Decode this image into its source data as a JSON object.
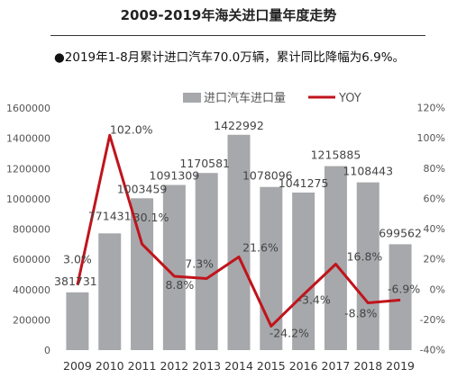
{
  "title": "2009-2019年海关进口量年度走势",
  "subtitle": "●2019年1-8月累计进口汽车70.0万辆，累计同比降幅为6.9%。",
  "colors": {
    "bar": "#a6a8ab",
    "line": "#c0141c"
  },
  "chart_data": {
    "type": "bar+line",
    "categories": [
      "2009",
      "2010",
      "2011",
      "2012",
      "2013",
      "2014",
      "2015",
      "2016",
      "2017",
      "2018",
      "2019"
    ],
    "series": [
      {
        "name": "进口汽车进口量",
        "type": "bar",
        "axis": "left",
        "values": [
          381731,
          771431,
          1003459,
          1091309,
          1170581,
          1422992,
          1078096,
          1041275,
          1215885,
          1108443,
          699562
        ],
        "labels": [
          "381731",
          "771431",
          "1003459",
          "1091309",
          "1170581",
          "1422992",
          "1078096",
          "1041275",
          "1215885",
          "1108443",
          "699562"
        ]
      },
      {
        "name": "YOY",
        "type": "line",
        "axis": "right",
        "values": [
          3.0,
          102.0,
          30.1,
          8.8,
          7.3,
          21.6,
          -24.2,
          -3.4,
          16.8,
          -8.8,
          -6.9
        ],
        "labels": [
          "3.0%",
          "102.0%",
          "30.1%",
          "8.8%",
          "7.3%",
          "21.6%",
          "-24.2%",
          "-3.4%",
          "16.8%",
          "-8.8%",
          "-6.9%"
        ]
      }
    ],
    "y_left": {
      "range": [
        0,
        1600000
      ],
      "ticks": [
        "0",
        "200000",
        "400000",
        "600000",
        "800000",
        "1000000",
        "1200000",
        "1400000",
        "1600000"
      ]
    },
    "y_right": {
      "range": [
        -40,
        120
      ],
      "ticks": [
        "-40%",
        "-20%",
        "0%",
        "20%",
        "40%",
        "60%",
        "80%",
        "100%",
        "120%"
      ]
    },
    "legend_position": "top-center",
    "grid": false
  }
}
